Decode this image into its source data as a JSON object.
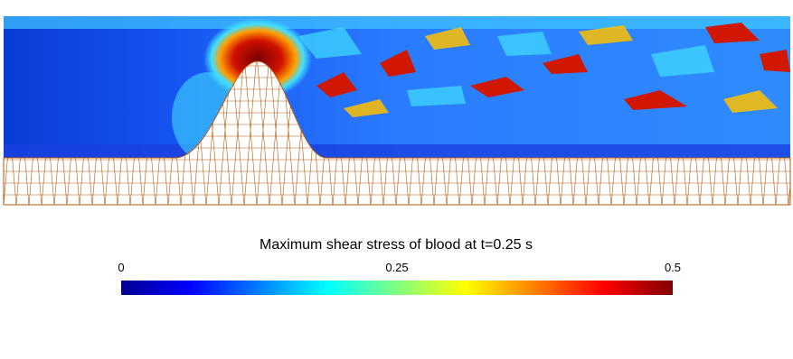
{
  "colorbar": {
    "title": "Maximum shear stress of blood at t=0.25 s",
    "ticks": [
      0,
      0.25,
      0.5
    ]
  }
}
